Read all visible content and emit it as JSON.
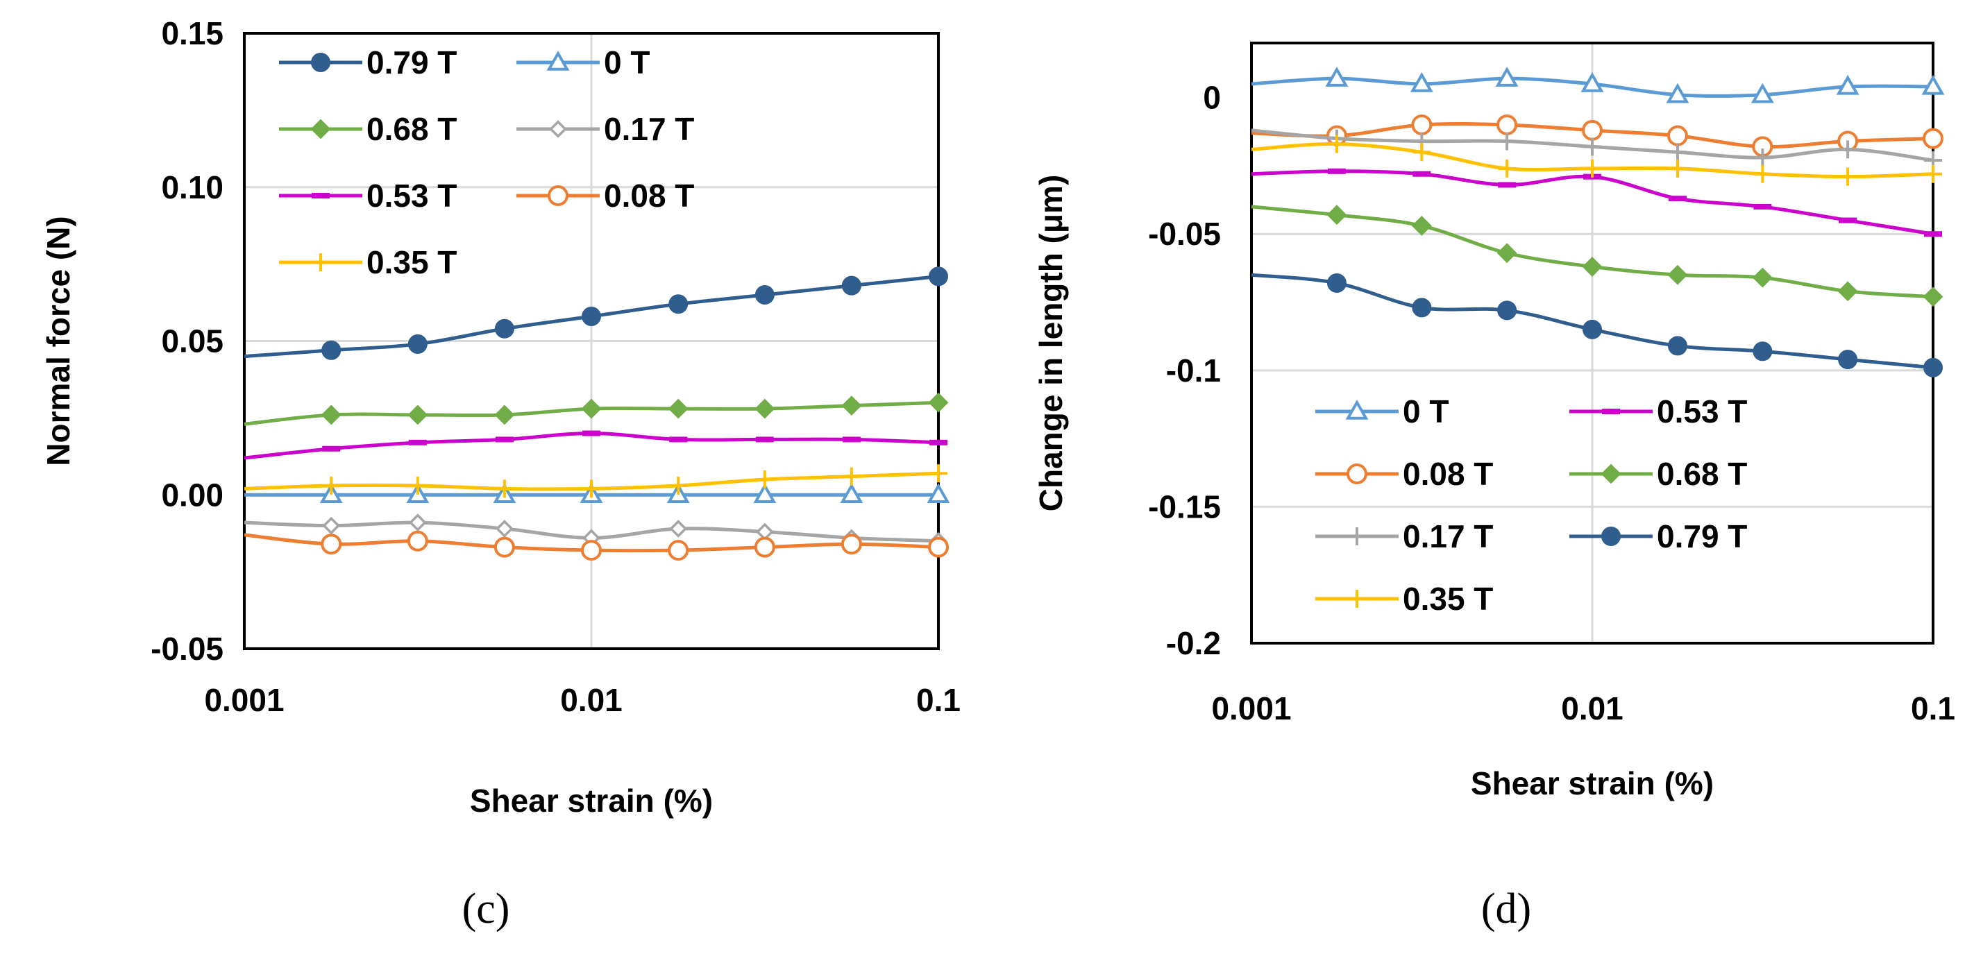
{
  "chart_data": [
    {
      "type": "line",
      "panel_label": "(c)",
      "title": "",
      "xlabel": "Shear strain (%)",
      "ylabel": "Normal force (N)",
      "xscale": "log",
      "xlim": [
        0.001,
        0.1
      ],
      "ylim": [
        -0.05,
        0.15
      ],
      "x_ticks": [
        "0.001",
        "0.01",
        "0.1"
      ],
      "y_ticks": [
        "0.15",
        "0.10",
        "0.05",
        "0.00",
        "-0.05"
      ],
      "grid": true,
      "legend_position": "top-left",
      "x": [
        0.001,
        0.00178,
        0.00316,
        0.00562,
        0.01,
        0.0178,
        0.0316,
        0.0562,
        0.1
      ],
      "series": [
        {
          "name": "0.79 T",
          "color": "#2f5d8e",
          "marker": "circle-filled",
          "values": [
            0.045,
            0.047,
            0.049,
            0.054,
            0.058,
            0.062,
            0.065,
            0.068,
            0.071
          ]
        },
        {
          "name": "0 T",
          "color": "#5b9bd5",
          "marker": "triangle-open",
          "values": [
            0.0,
            0.0,
            0.0,
            0.0,
            0.0,
            0.0,
            0.0,
            0.0,
            0.0
          ]
        },
        {
          "name": "0.68 T",
          "color": "#70ad47",
          "marker": "diamond-filled",
          "values": [
            0.023,
            0.026,
            0.026,
            0.026,
            0.028,
            0.028,
            0.028,
            0.029,
            0.03
          ]
        },
        {
          "name": "0.17 T",
          "color": "#a5a5a5",
          "marker": "diamond-open",
          "values": [
            -0.009,
            -0.01,
            -0.009,
            -0.011,
            -0.014,
            -0.011,
            -0.012,
            -0.014,
            -0.015
          ]
        },
        {
          "name": "0.53 T",
          "color": "#cc00cc",
          "marker": "dash",
          "values": [
            0.012,
            0.015,
            0.017,
            0.018,
            0.02,
            0.018,
            0.018,
            0.018,
            0.017
          ]
        },
        {
          "name": "0.08 T",
          "color": "#ed7d31",
          "marker": "circle-open",
          "values": [
            -0.013,
            -0.016,
            -0.015,
            -0.017,
            -0.018,
            -0.018,
            -0.017,
            -0.016,
            -0.017
          ]
        },
        {
          "name": "0.35 T",
          "color": "#ffc000",
          "marker": "plus",
          "values": [
            0.002,
            0.003,
            0.003,
            0.002,
            0.002,
            0.003,
            0.005,
            0.006,
            0.007
          ]
        }
      ]
    },
    {
      "type": "line",
      "panel_label": "(d)",
      "title": "",
      "xlabel": "Shear strain (%)",
      "ylabel": "Change in length (μm)",
      "xscale": "log",
      "xlim": [
        0.001,
        0.1
      ],
      "ylim": [
        -0.2,
        0.02
      ],
      "x_ticks": [
        "0.001",
        "0.01",
        "0.1"
      ],
      "y_ticks": [
        "0",
        "-0.05",
        "-0.1",
        "-0.15",
        "-0.2"
      ],
      "grid": true,
      "legend_position": "bottom-left",
      "x": [
        0.001,
        0.00178,
        0.00316,
        0.00562,
        0.01,
        0.0178,
        0.0316,
        0.0562,
        0.1
      ],
      "series": [
        {
          "name": "0 T",
          "color": "#5b9bd5",
          "marker": "triangle-open",
          "values": [
            0.005,
            0.007,
            0.005,
            0.007,
            0.005,
            0.001,
            0.001,
            0.004,
            0.004
          ]
        },
        {
          "name": "0.53 T",
          "color": "#cc00cc",
          "marker": "dash",
          "values": [
            -0.028,
            -0.027,
            -0.028,
            -0.032,
            -0.029,
            -0.037,
            -0.04,
            -0.045,
            -0.05
          ]
        },
        {
          "name": "0.08 T",
          "color": "#ed7d31",
          "marker": "circle-open",
          "values": [
            -0.013,
            -0.014,
            -0.01,
            -0.01,
            -0.012,
            -0.014,
            -0.018,
            -0.016,
            -0.015
          ]
        },
        {
          "name": "0.68 T",
          "color": "#70ad47",
          "marker": "diamond-filled",
          "values": [
            -0.04,
            -0.043,
            -0.047,
            -0.057,
            -0.062,
            -0.065,
            -0.066,
            -0.071,
            -0.073
          ]
        },
        {
          "name": "0.17 T",
          "color": "#a5a5a5",
          "marker": "plus",
          "values": [
            -0.012,
            -0.015,
            -0.016,
            -0.016,
            -0.018,
            -0.02,
            -0.022,
            -0.019,
            -0.023
          ]
        },
        {
          "name": "0.79 T",
          "color": "#2f5d8e",
          "marker": "circle-filled",
          "values": [
            -0.065,
            -0.068,
            -0.077,
            -0.078,
            -0.085,
            -0.091,
            -0.093,
            -0.096,
            -0.099
          ]
        },
        {
          "name": "0.35 T",
          "color": "#ffc000",
          "marker": "plus",
          "values": [
            -0.019,
            -0.017,
            -0.02,
            -0.026,
            -0.026,
            -0.026,
            -0.028,
            -0.029,
            -0.028
          ]
        }
      ]
    }
  ]
}
